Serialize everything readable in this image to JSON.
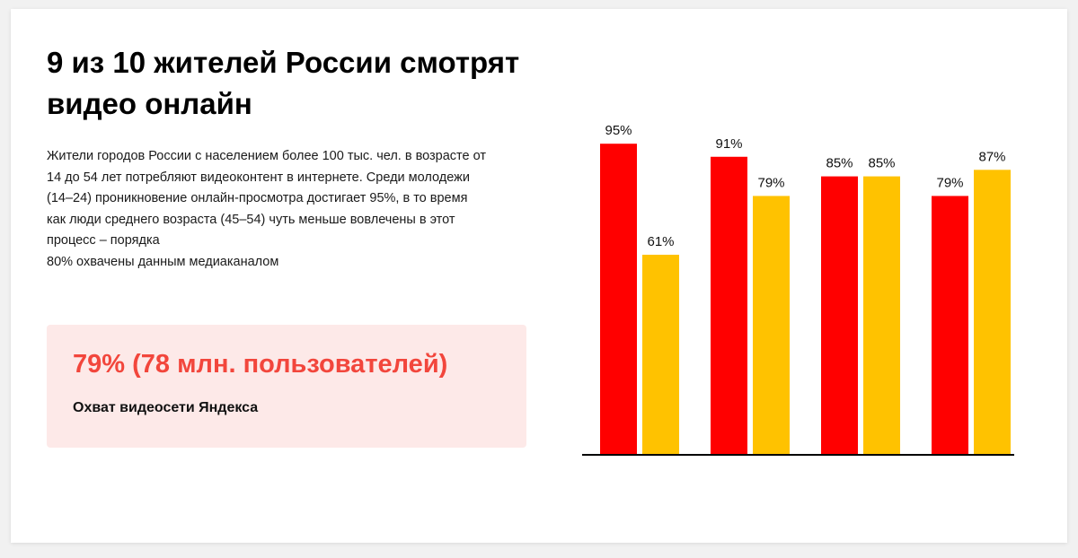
{
  "title": "9 из 10 жителей России смотрят видео онлайн",
  "description_lines": [
    "Жители городов России с населением более 100 тыс. чел. в возрасте от",
    "14 до 54 лет потребляют видеоконтент в интернете. Среди молодежи",
    "(14–24) проникновение онлайн-просмотра достигает 95%, в то время",
    "как люди среднего возраста (45–54) чуть меньше вовлечены в этот",
    "процесс – порядка",
    "80% охвачены данным медиаканалом"
  ],
  "highlight": {
    "value": "79% (78 млн. пользователей)",
    "caption": "Охват видеосети Яндекса"
  },
  "colors": {
    "series_1": "#ff0000",
    "series_2": "#ffc200",
    "highlight_text": "#f2463c",
    "highlight_bg": "#fde9e8"
  },
  "chart_data": {
    "type": "bar",
    "categories": [
      "",
      "",
      "",
      ""
    ],
    "series": [
      {
        "values": [
          95,
          91,
          85,
          79
        ],
        "labels": [
          "95%",
          "91%",
          "85%",
          "79%"
        ],
        "color": "#ff0000"
      },
      {
        "values": [
          61,
          79,
          85,
          87
        ],
        "labels": [
          "61%",
          "79%",
          "85%",
          "87%"
        ],
        "color": "#ffc200"
      }
    ],
    "ylim": [
      0,
      100
    ],
    "grid": false,
    "legend": "none"
  }
}
